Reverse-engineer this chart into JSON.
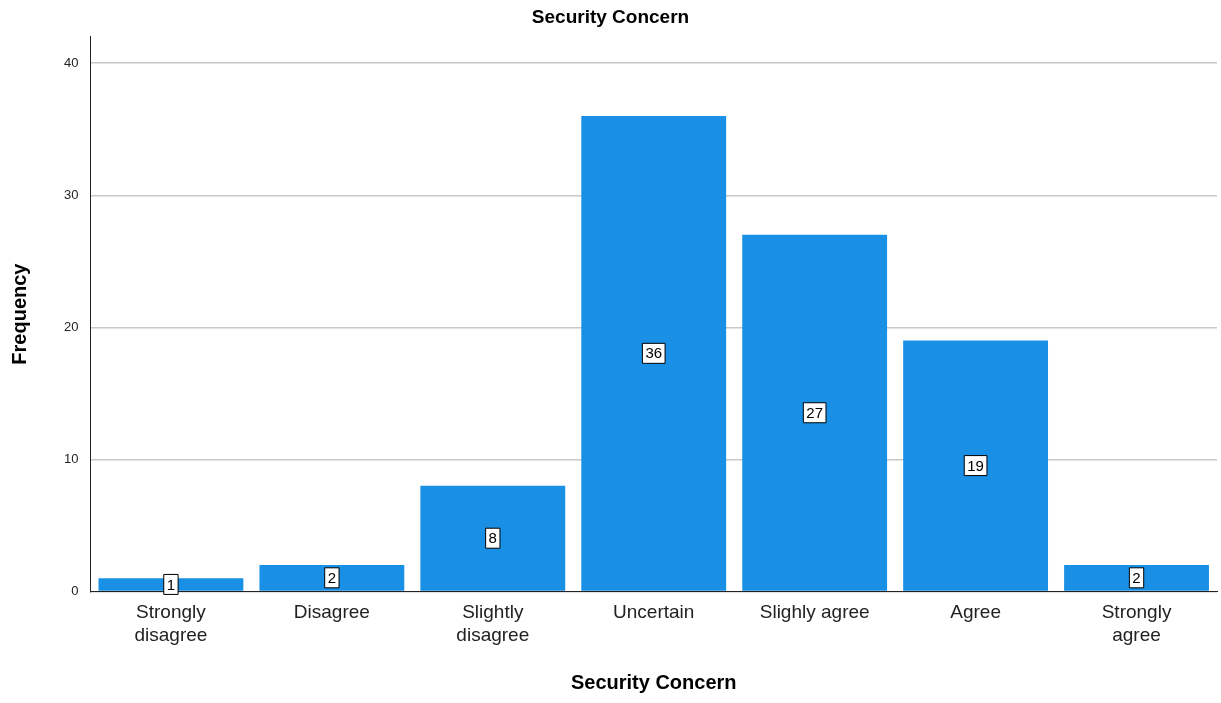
{
  "chart_data": {
    "type": "bar",
    "title": "Security Concern",
    "xlabel": "Security Concern",
    "ylabel": "Frequency",
    "categories": [
      "Strongly\ndisagree",
      "Disagree",
      "Slightly\ndisagree",
      "Uncertain",
      "Slighly agree",
      "Agree",
      "Strongly\nagree"
    ],
    "values": [
      1,
      2,
      8,
      36,
      27,
      19,
      2
    ],
    "color": "#1990e5",
    "ylim": [
      0,
      42
    ],
    "yticks": [
      0,
      10,
      20,
      30,
      40
    ],
    "grid": "y",
    "data_labels": true,
    "legend": false
  }
}
